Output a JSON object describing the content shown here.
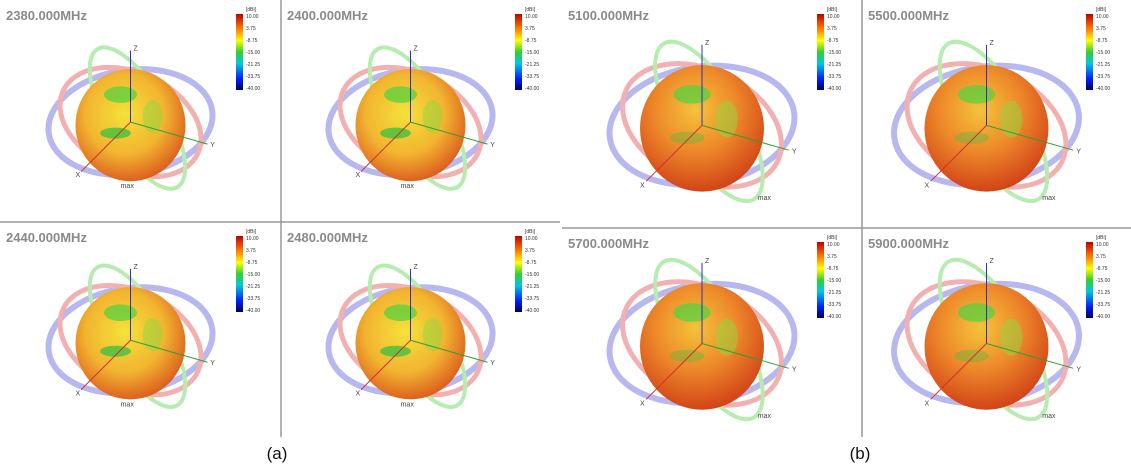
{
  "figure": {
    "groups": [
      {
        "label": "(a)",
        "panels": [
          {
            "title": "2380.000MHz"
          },
          {
            "title": "2400.000MHz"
          },
          {
            "title": "2440.000MHz"
          },
          {
            "title": "2480.000MHz"
          }
        ]
      },
      {
        "label": "(b)",
        "panels": [
          {
            "title": "5100.000MHz"
          },
          {
            "title": "5500.000MHz"
          },
          {
            "title": "5700.000MHz"
          },
          {
            "title": "5900.000MHz"
          }
        ]
      }
    ],
    "colorbar": {
      "unit": "[dBi]",
      "ticks": [
        "10.00",
        "3.75",
        "-8.75",
        "-15.00",
        "-21.25",
        "-33.75",
        "-40.00"
      ]
    },
    "axes": {
      "z": "Z",
      "y": "Y",
      "x": "X"
    },
    "marker": "max"
  }
}
